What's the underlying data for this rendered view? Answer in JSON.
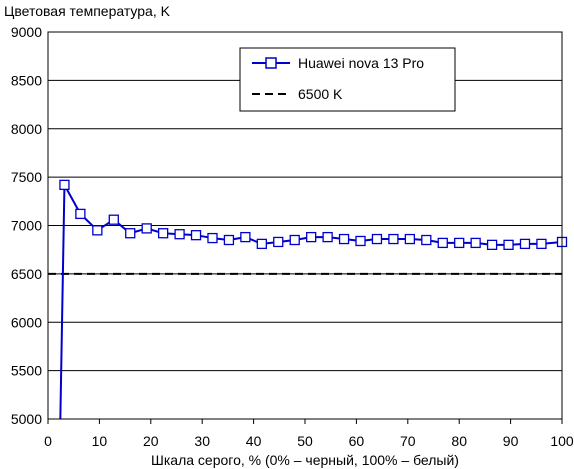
{
  "chart_data": {
    "type": "line",
    "title": "Цветовая температура, K",
    "xlabel": "Шкала серого, % (0% – черный, 100% – белый)",
    "ylabel": "",
    "xlim": [
      0,
      100
    ],
    "ylim": [
      5000,
      9000
    ],
    "x_ticks": [
      0,
      10,
      20,
      30,
      40,
      50,
      60,
      70,
      80,
      90,
      100
    ],
    "y_ticks": [
      5000,
      5500,
      6000,
      6500,
      7000,
      7500,
      8000,
      8500,
      9000
    ],
    "grid": "horizontal",
    "legend_position": "top-right",
    "series": [
      {
        "name": "Huawei nova 13 Pro",
        "color": "#0000cc",
        "marker": "square",
        "x": [
          2.4,
          3.2,
          6.3,
          9.6,
          12.8,
          16.0,
          19.2,
          22.4,
          25.6,
          28.8,
          32.0,
          35.2,
          38.4,
          41.6,
          44.8,
          48.0,
          51.2,
          54.4,
          57.6,
          60.8,
          64.0,
          67.2,
          70.4,
          73.6,
          76.8,
          80.0,
          83.2,
          86.4,
          89.6,
          92.8,
          96.0,
          100
        ],
        "y": [
          5000,
          7420,
          7120,
          6950,
          7060,
          6920,
          6970,
          6920,
          6910,
          6900,
          6870,
          6850,
          6880,
          6810,
          6830,
          6850,
          6880,
          6880,
          6860,
          6840,
          6860,
          6860,
          6860,
          6850,
          6820,
          6820,
          6820,
          6800,
          6800,
          6810,
          6810,
          6830
        ],
        "marker_from_index": 1
      },
      {
        "name": "6500 K",
        "color": "#000000",
        "style": "dashed",
        "x": [
          0,
          100
        ],
        "y": [
          6500,
          6500
        ]
      }
    ]
  }
}
